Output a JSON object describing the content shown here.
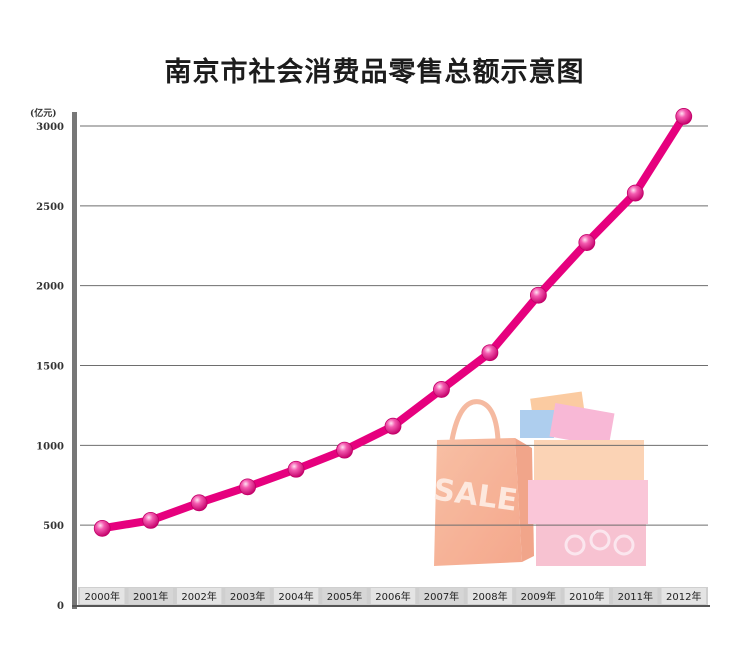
{
  "title": "南京市社会消费品零售总额示意图",
  "chart_data": {
    "type": "line",
    "title": "南京市社会消费品零售总额示意图",
    "xlabel": "",
    "ylabel": "(亿元)",
    "categories": [
      "2000年",
      "2001年",
      "2002年",
      "2003年",
      "2004年",
      "2005年",
      "2006年",
      "2007年",
      "2008年",
      "2009年",
      "2010年",
      "2011年",
      "2012年"
    ],
    "series": [
      {
        "values": [
          480,
          530,
          640,
          740,
          850,
          970,
          1120,
          1350,
          1580,
          1940,
          2270,
          2580,
          3060
        ]
      }
    ],
    "yticks": [
      "0",
      "500",
      "1000",
      "1500",
      "2000",
      "2500",
      "3000"
    ],
    "ylim": [
      0,
      3100
    ],
    "grid": true,
    "legend": "none",
    "line_color": "#e6007e",
    "marker_color": "#f03ca0"
  }
}
